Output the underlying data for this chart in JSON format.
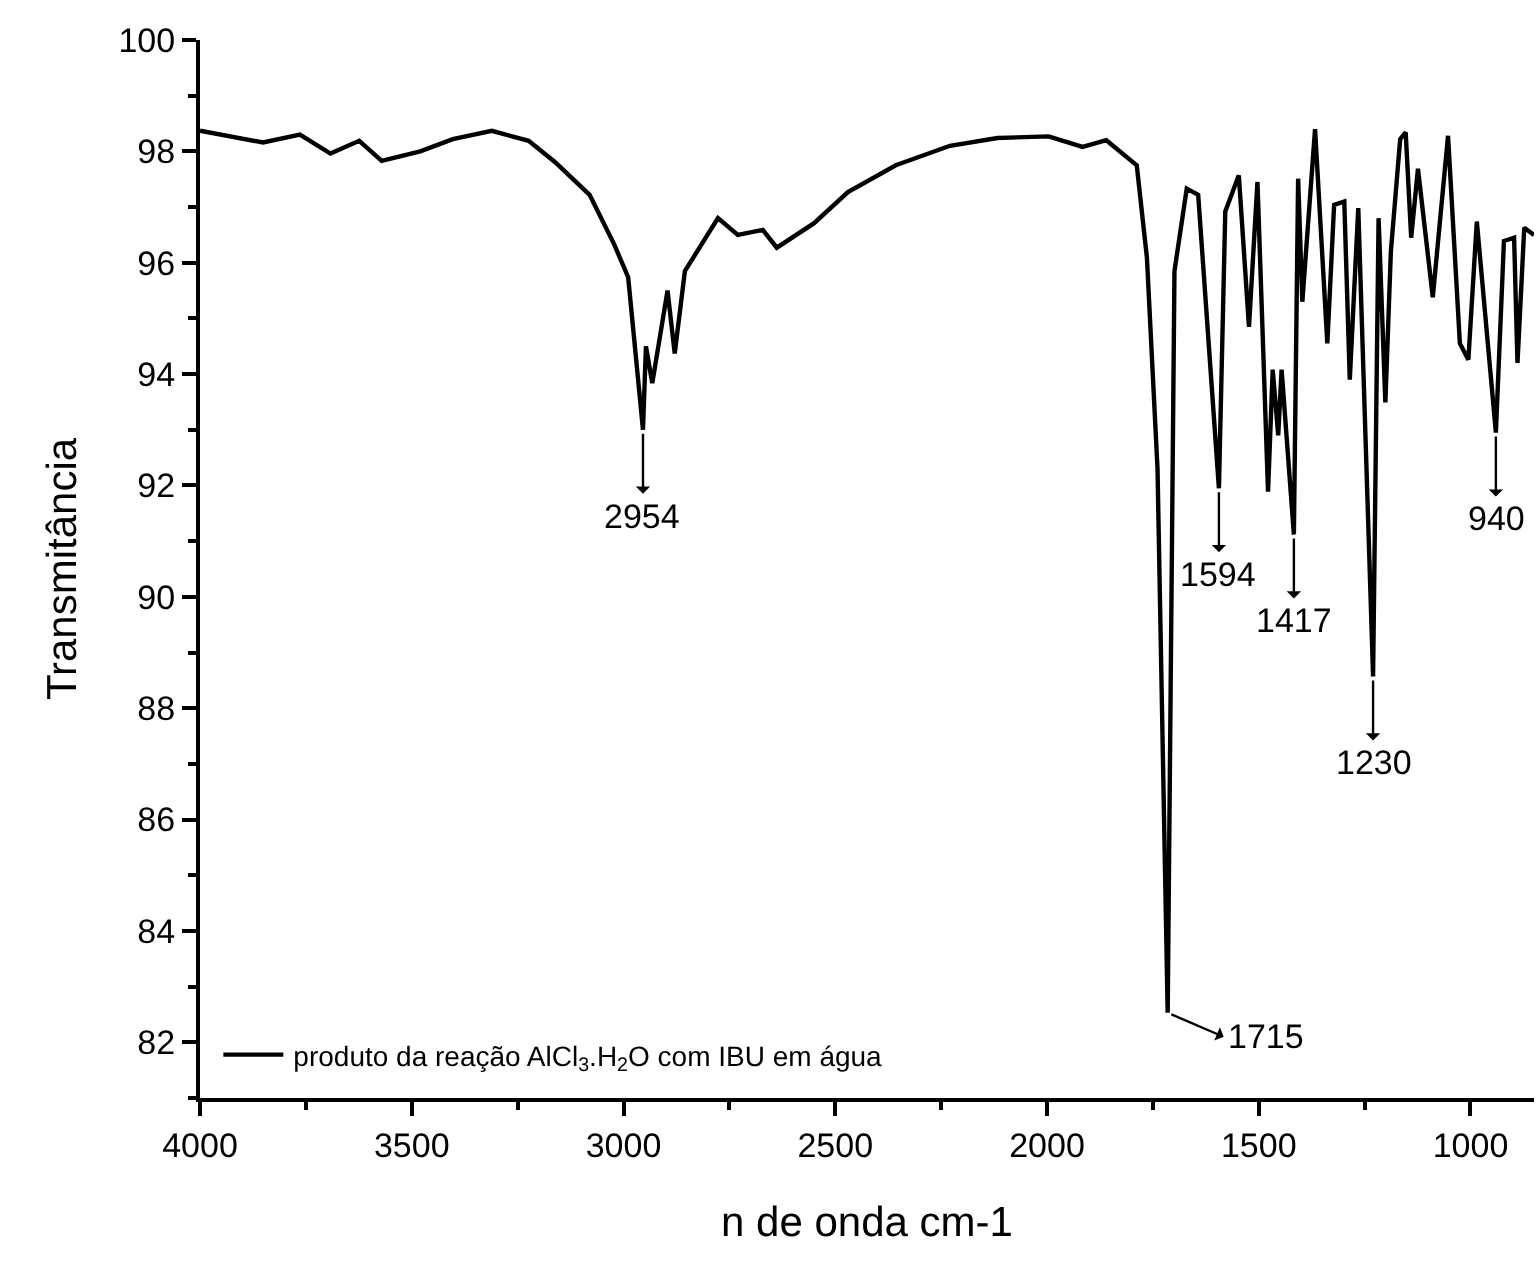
{
  "chart_data": {
    "type": "line",
    "xlabel": "n de onda cm-1",
    "ylabel": "Transmitância",
    "xlim": [
      4000,
      850
    ],
    "ylim": [
      81,
      100
    ],
    "xticks": [
      4000,
      3500,
      3000,
      2500,
      2000,
      1500,
      1000
    ],
    "yticks": [
      82,
      84,
      86,
      88,
      90,
      92,
      94,
      96,
      98,
      100
    ],
    "legend": "bottom left",
    "marker": "none",
    "line_style": "solid",
    "series": [
      {
        "name": "produto da reação AlCl$_{3}$.H$_{2}$O com IBU em água",
        "color": "#000000",
        "x": [
          4000,
          3851,
          3764,
          3692,
          3624,
          3571,
          3480,
          3403,
          3311,
          3224,
          3162,
          3080,
          3022,
          2989,
          2954,
          2947,
          2932,
          2896,
          2879,
          2855,
          2777,
          2730,
          2671,
          2638,
          2550,
          2470,
          2357,
          2229,
          2117,
          1996,
          1916,
          1860,
          1788,
          1764,
          1739,
          1715,
          1699,
          1670,
          1643,
          1594,
          1579,
          1547,
          1523,
          1503,
          1478,
          1467,
          1454,
          1446,
          1417,
          1407,
          1397,
          1367,
          1338,
          1322,
          1298,
          1285,
          1265,
          1230,
          1217,
          1201,
          1188,
          1166,
          1153,
          1140,
          1124,
          1089,
          1053,
          1025,
          1005,
          985,
          940,
          921,
          897,
          889,
          873,
          850
        ],
        "values": [
          98.37,
          98.16,
          98.3,
          97.96,
          98.19,
          97.83,
          98.0,
          98.22,
          98.37,
          98.19,
          97.81,
          97.22,
          96.33,
          95.74,
          93.0,
          94.5,
          93.84,
          95.5,
          94.37,
          95.85,
          96.8,
          96.5,
          96.59,
          96.27,
          96.71,
          97.27,
          97.75,
          98.1,
          98.24,
          98.27,
          98.08,
          98.2,
          97.75,
          96.09,
          92.3,
          82.53,
          95.85,
          97.33,
          97.22,
          91.95,
          96.92,
          97.57,
          94.85,
          97.45,
          91.89,
          94.08,
          92.9,
          94.08,
          91.12,
          97.51,
          95.3,
          98.4,
          94.55,
          97.04,
          97.1,
          93.9,
          96.98,
          88.57,
          96.8,
          93.49,
          96.2,
          98.22,
          98.34,
          96.45,
          97.69,
          95.38,
          98.28,
          94.55,
          94.26,
          96.74,
          92.95,
          96.39,
          96.45,
          94.2,
          96.63,
          96.5
        ]
      }
    ],
    "annotations": [
      {
        "text": "2954",
        "x": 2954,
        "y": 93.0
      },
      {
        "text": "1715",
        "x": 1715,
        "y": 82.53
      },
      {
        "text": "1594",
        "x": 1594,
        "y": 91.95
      },
      {
        "text": "1417",
        "x": 1417,
        "y": 91.12
      },
      {
        "text": "1230",
        "x": 1230,
        "y": 88.57
      },
      {
        "text": "940",
        "x": 940,
        "y": 92.95
      }
    ]
  }
}
